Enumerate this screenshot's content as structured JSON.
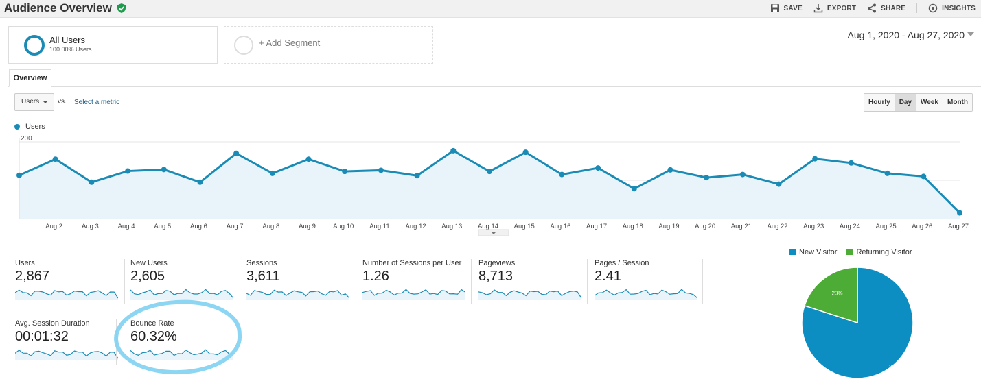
{
  "header": {
    "title": "Audience Overview",
    "actions": {
      "save": "SAVE",
      "export": "EXPORT",
      "share": "SHARE",
      "insights": "INSIGHTS"
    }
  },
  "segments": {
    "active": {
      "name": "All Users",
      "sub": "100.00% Users"
    },
    "add_label": "+ Add Segment"
  },
  "date_range": "Aug 1, 2020 - Aug 27, 2020",
  "tabs": {
    "overview": "Overview"
  },
  "controls": {
    "metric": "Users",
    "vs": "vs.",
    "select_metric": "Select a metric",
    "granularity": [
      "Hourly",
      "Day",
      "Week",
      "Month"
    ],
    "granularity_active": "Day"
  },
  "colors": {
    "accent": "#1a8bb5",
    "returning": "#4cac35",
    "highlight": "#7fd1f2"
  },
  "chart_data": {
    "type": "line",
    "series": [
      {
        "name": "Users",
        "values": [
          113,
          155,
          95,
          124,
          128,
          95,
          170,
          118,
          155,
          123,
          126,
          112,
          177,
          123,
          173,
          115,
          132,
          78,
          127,
          107,
          115,
          90,
          156,
          145,
          118,
          110,
          15
        ]
      }
    ],
    "x": [
      "...",
      "Aug 2",
      "Aug 3",
      "Aug 4",
      "Aug 5",
      "Aug 6",
      "Aug 7",
      "Aug 8",
      "Aug 9",
      "Aug 10",
      "Aug 11",
      "Aug 12",
      "Aug 13",
      "Aug 14",
      "Aug 15",
      "Aug 16",
      "Aug 17",
      "Aug 18",
      "Aug 19",
      "Aug 20",
      "Aug 21",
      "Aug 22",
      "Aug 23",
      "Aug 24",
      "Aug 25",
      "Aug 26",
      "Aug 27"
    ],
    "yticks": [
      "200",
      "100"
    ],
    "ylim": [
      0,
      200
    ],
    "grid": true
  },
  "metrics": [
    {
      "label": "Users",
      "value": "2,867"
    },
    {
      "label": "New Users",
      "value": "2,605"
    },
    {
      "label": "Sessions",
      "value": "3,611"
    },
    {
      "label": "Number of Sessions per User",
      "value": "1.26"
    },
    {
      "label": "Pageviews",
      "value": "8,713"
    },
    {
      "label": "Pages / Session",
      "value": "2.41"
    },
    {
      "label": "Avg. Session Duration",
      "value": "00:01:32"
    },
    {
      "label": "Bounce Rate",
      "value": "60.32%"
    }
  ],
  "pie": {
    "legend": [
      {
        "label": "New Visitor",
        "color": "#0d8ec3"
      },
      {
        "label": "Returning Visitor",
        "color": "#4cac35"
      }
    ],
    "slices": [
      {
        "name": "New Visitor",
        "value": 80,
        "label": "80%"
      },
      {
        "name": "Returning Visitor",
        "value": 20,
        "label": "20%"
      }
    ]
  }
}
